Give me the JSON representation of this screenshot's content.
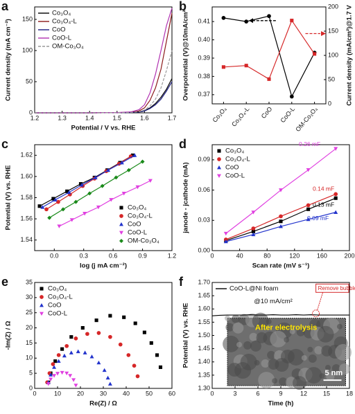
{
  "chart_data": [
    {
      "type": "line",
      "label": "a",
      "xlabel": "Potential / V vs. RHE",
      "ylabel": "Current density (mA cm⁻²)",
      "x": [
        1.2,
        1.3,
        1.4,
        1.5,
        1.55,
        1.58,
        1.6,
        1.62,
        1.64,
        1.66,
        1.68,
        1.7
      ],
      "xlim": [
        1.2,
        1.7
      ],
      "xticks": [
        1.2,
        1.3,
        1.4,
        1.5,
        1.6,
        1.7
      ],
      "ylim": [
        0,
        170
      ],
      "yticks": [
        0,
        50,
        100,
        150
      ],
      "legend": "upper left",
      "series": [
        {
          "name": "Co₃O₄",
          "color": "#000000",
          "values": [
            0,
            0,
            0,
            0.2,
            0.6,
            1.5,
            3.5,
            8,
            15,
            25,
            38,
            55
          ]
        },
        {
          "name": "Co₃O₄-L",
          "color": "#8b1a1a",
          "values": [
            0,
            0,
            0,
            0.3,
            1,
            3,
            8,
            20,
            40,
            70,
            115,
            160
          ]
        },
        {
          "name": "CoO",
          "color": "#1a1a80",
          "values": [
            0,
            0,
            0,
            0.2,
            0.5,
            1.2,
            3,
            7,
            13,
            22,
            35,
            50
          ]
        },
        {
          "name": "CoO-L",
          "color": "#b030b0",
          "values": [
            0,
            0,
            0,
            0.4,
            1.5,
            5,
            13,
            32,
            62,
            100,
            140,
            168
          ]
        },
        {
          "name": "OM-Co₃O₄",
          "color": "#999999",
          "dash": true,
          "values": [
            0,
            0,
            0,
            0.2,
            0.6,
            1.8,
            4.5,
            11,
            22,
            40,
            68,
            100
          ]
        }
      ]
    },
    {
      "type": "line",
      "label": "b",
      "ylabel": "Overpotential (V)@10mA/cm²",
      "y2label": "Current density (mA/cm²)@1.7 V",
      "categories": [
        "Co₃O₄",
        "Co₃O₄-L",
        "CoO",
        "CoO-L",
        "OM-Co₃O₄"
      ],
      "ylim": [
        0.365,
        0.418
      ],
      "yticks": [
        0.37,
        0.38,
        0.39,
        {
          "value": 0.4,
          "label": "0.40"
        },
        0.41
      ],
      "y2lim": [
        0,
        200
      ],
      "y2ticks": [
        0,
        50,
        100,
        150,
        200
      ],
      "series": [
        {
          "name": "Overpotential",
          "color": "#000000",
          "marker": "circle",
          "values": [
            0.412,
            0.41,
            0.413,
            0.369,
            0.393
          ]
        },
        {
          "name": "Current density",
          "color": "#d62728",
          "marker": "square",
          "axis": "y2",
          "values": [
            76,
            79,
            51,
            172,
            103
          ]
        }
      ]
    },
    {
      "type": "line",
      "label": "c",
      "xlabel": "log (j mA cm⁻²)",
      "ylabel": "Potential (V) vs. RHE",
      "xlim": [
        -0.2,
        1.2
      ],
      "xticks": [
        {
          "value": 0,
          "label": "0.0"
        },
        0.3,
        0.6,
        0.9,
        1.2
      ],
      "ylim": [
        1.53,
        1.63
      ],
      "yticks": [
        1.54,
        1.56,
        1.58,
        {
          "value": 1.6,
          "label": "1.60"
        },
        1.62
      ],
      "legend": "lower right",
      "series": [
        {
          "name": "Co₃O₄",
          "color": "#000000",
          "marker": "square",
          "x": [
            -0.15,
            -0.01,
            0.13,
            0.27,
            0.41,
            0.54,
            0.67,
            0.8
          ],
          "values": [
            1.572,
            1.579,
            1.586,
            1.593,
            1.599,
            1.606,
            1.613,
            1.62
          ]
        },
        {
          "name": "Co₃O₄-L",
          "color": "#d62728",
          "marker": "circle",
          "x": [
            -0.08,
            0.04,
            0.16,
            0.29,
            0.41,
            0.53,
            0.66,
            0.78
          ],
          "values": [
            1.569,
            1.576,
            1.583,
            1.591,
            1.598,
            1.605,
            1.612,
            1.619
          ]
        },
        {
          "name": "CoO",
          "color": "#2233cc",
          "marker": "triangle",
          "x": [
            -0.12,
            0.01,
            0.15,
            0.28,
            0.42,
            0.55,
            0.69,
            0.82
          ],
          "values": [
            1.571,
            1.578,
            1.585,
            1.592,
            1.599,
            1.606,
            1.613,
            1.62
          ]
        },
        {
          "name": "CoO-L",
          "color": "#e040e0",
          "marker": "triangle-down",
          "x": [
            0.05,
            0.18,
            0.31,
            0.45,
            0.58,
            0.71,
            0.85,
            0.98
          ],
          "values": [
            1.553,
            1.559,
            1.565,
            1.571,
            1.578,
            1.584,
            1.59,
            1.596
          ]
        },
        {
          "name": "OM-Co₃O₄",
          "color": "#1a8a1a",
          "marker": "diamond",
          "x": [
            -0.05,
            0.09,
            0.22,
            0.36,
            0.49,
            0.63,
            0.76,
            0.9
          ],
          "values": [
            1.561,
            1.569,
            1.576,
            1.584,
            1.591,
            1.599,
            1.606,
            1.614
          ]
        }
      ]
    },
    {
      "type": "scatter",
      "label": "d",
      "xlabel": "Scan rate (mV s⁻¹)",
      "ylabel": "janode - jcathode (mA)",
      "x": [
        20,
        60,
        100,
        140,
        180
      ],
      "xlim": [
        0,
        200
      ],
      "xticks": [
        0,
        40,
        80,
        120,
        160,
        200
      ],
      "ylim": [
        0,
        0.105
      ],
      "yticks": [
        {
          "value": 0,
          "label": "0.00"
        },
        0.03,
        0.06,
        0.09
      ],
      "legend": "upper left",
      "series": [
        {
          "name": "Co₃O₄",
          "color": "#000000",
          "marker": "square",
          "line": true,
          "annotation": "0.13 mF",
          "values": [
            0.01,
            0.019,
            0.029,
            0.041,
            0.052
          ]
        },
        {
          "name": "Co₃O₄-L",
          "color": "#d62728",
          "marker": "circle",
          "line": true,
          "annotation": "0.14 mF",
          "values": [
            0.011,
            0.022,
            0.034,
            0.045,
            0.056
          ]
        },
        {
          "name": "CoO",
          "color": "#2233cc",
          "marker": "triangle",
          "line": true,
          "annotation": "0.09 mF",
          "values": [
            0.009,
            0.016,
            0.024,
            0.031,
            0.038
          ]
        },
        {
          "name": "CoO-L",
          "color": "#e040e0",
          "marker": "triangle-down",
          "line": true,
          "annotation": "0.26 mF",
          "values": [
            0.017,
            0.038,
            0.06,
            0.08,
            0.101
          ]
        }
      ]
    },
    {
      "type": "scatter",
      "label": "e",
      "xlabel": "Re(Z) / Ω",
      "ylabel": "-Im(Z) / Ω",
      "xlim": [
        0,
        60
      ],
      "xticks": [
        0,
        10,
        20,
        30,
        40,
        50,
        60
      ],
      "ylim": [
        0,
        35
      ],
      "yticks": [
        0,
        5,
        10,
        15,
        20,
        25,
        30,
        35
      ],
      "legend": "upper left",
      "series": [
        {
          "name": "Co₃O₄",
          "color": "#000000",
          "marker": "square",
          "x": [
            6,
            7,
            9,
            12,
            16,
            21,
            27,
            33,
            39,
            44,
            48,
            51,
            53.5,
            55
          ],
          "values": [
            2,
            5,
            9,
            13,
            17,
            20,
            22.5,
            24,
            23.5,
            21.5,
            18.5,
            15,
            11,
            7
          ]
        },
        {
          "name": "Co₃O₄-L",
          "color": "#d62728",
          "marker": "circle",
          "x": [
            5.5,
            6.5,
            8,
            10.5,
            14,
            18,
            23,
            28,
            33,
            37.5,
            41,
            43.5,
            45
          ],
          "values": [
            2,
            5,
            8,
            11,
            14,
            16.5,
            18,
            18.3,
            17,
            14.5,
            11,
            7.5,
            4
          ]
        },
        {
          "name": "CoO",
          "color": "#2233cc",
          "marker": "triangle",
          "x": [
            6,
            7,
            8.5,
            10.5,
            13,
            16,
            19,
            22,
            25,
            28,
            30.5,
            32,
            33
          ],
          "values": [
            2,
            4.5,
            7,
            9,
            10.8,
            11.8,
            12.2,
            11.8,
            10.5,
            8.5,
            6,
            3.5,
            1.5
          ]
        },
        {
          "name": "CoO-L",
          "color": "#e040e0",
          "marker": "triangle-down",
          "x": [
            6,
            7,
            8.5,
            10,
            12,
            14,
            15.5,
            17,
            18
          ],
          "values": [
            1.5,
            3,
            4.2,
            4.9,
            5.2,
            5,
            4.2,
            2.8,
            1
          ]
        }
      ]
    },
    {
      "type": "line",
      "label": "f",
      "xlabel": "Time (h)",
      "ylabel": "Potential (V) vs. RHE",
      "x": [
        0,
        1,
        2,
        3,
        4,
        5,
        6,
        7,
        8,
        9,
        10,
        11,
        12,
        13,
        14,
        15,
        16,
        17,
        18
      ],
      "xlim": [
        0,
        18
      ],
      "xticks": [
        0,
        3,
        6,
        9,
        12,
        15,
        18
      ],
      "ylim": [
        1.3,
        1.7
      ],
      "yticks": [
        {
          "value": 1.3,
          "label": "1.30"
        },
        1.35,
        {
          "value": 1.4,
          "label": "1.40"
        },
        1.45,
        {
          "value": 1.5,
          "label": "1.50"
        },
        1.55,
        {
          "value": 1.6,
          "label": "1.60"
        },
        1.65,
        {
          "value": 1.7,
          "label": "1.70"
        }
      ],
      "legend": "upper left",
      "series": [
        {
          "name": "CoO-L@Ni foam",
          "color": "#000000",
          "values": [
            1.574,
            1.576,
            1.577,
            1.577,
            1.577,
            1.578,
            1.577,
            1.577,
            1.578,
            1.577,
            1.577,
            1.578,
            1.577,
            1.578,
            1.577,
            1.577,
            1.577,
            1.577,
            1.577
          ]
        }
      ],
      "annotations": [
        "@10 mA/cm²",
        "Remove bubble"
      ],
      "inset": {
        "title": "After electrolysis",
        "scale_bar": "5 nm"
      }
    }
  ]
}
